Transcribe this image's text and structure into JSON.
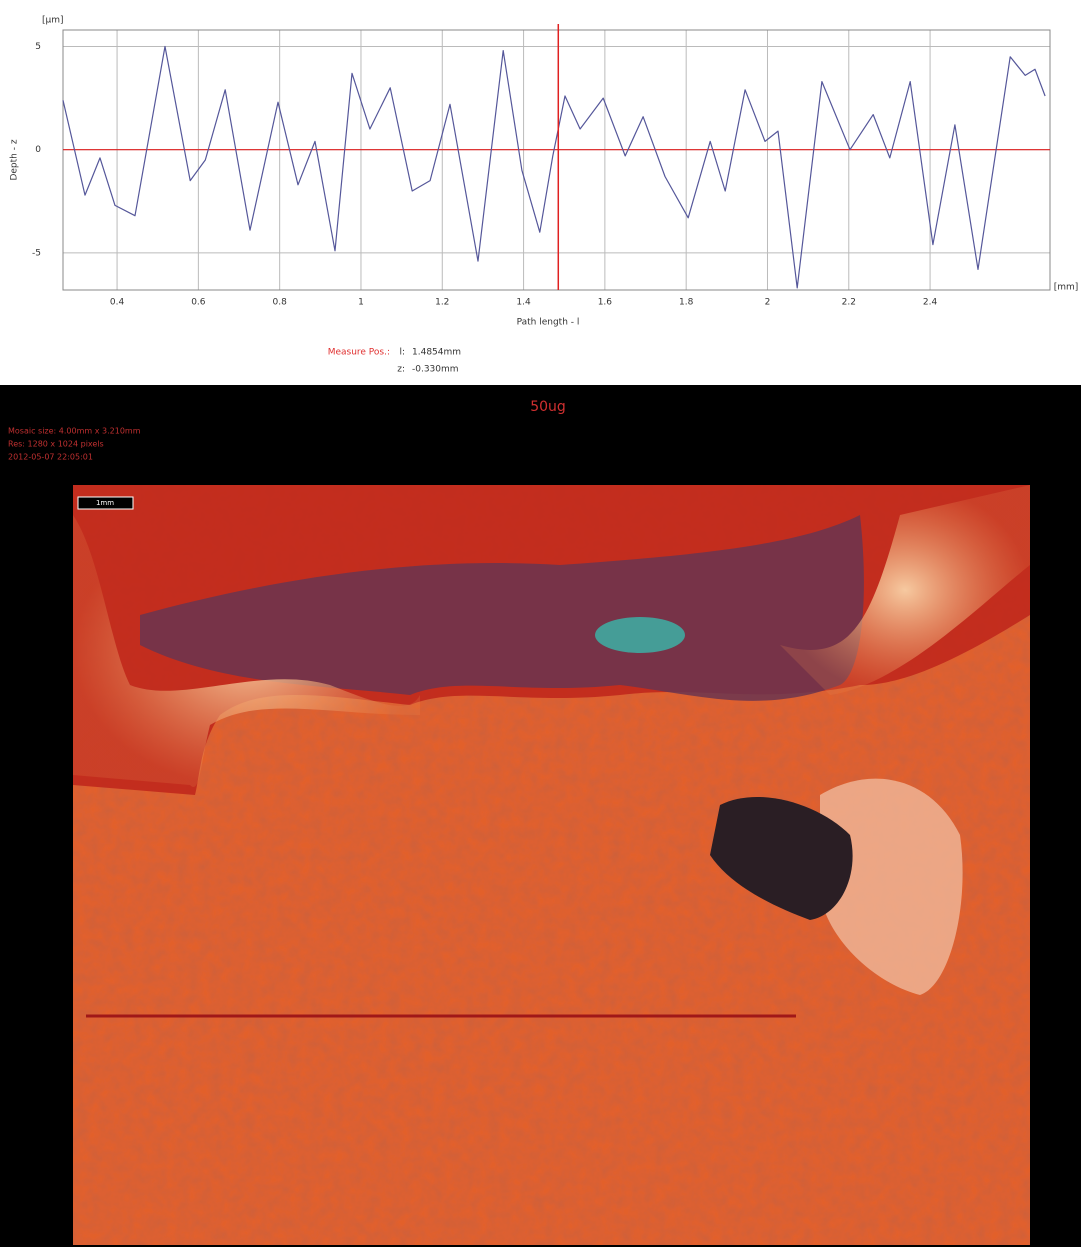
{
  "chart_data": {
    "type": "line",
    "y_unit": "[µm]",
    "x_unit": "[mm]",
    "y_label": "Depth - z",
    "x_label": "Path length - l",
    "xlim": [
      0.267,
      2.695
    ],
    "ylim": [
      -6.8,
      5.8
    ],
    "xticks": [
      0.4,
      0.6,
      0.8,
      1,
      1.2,
      1.4,
      1.6,
      1.8,
      2,
      2.2,
      2.4
    ],
    "yticks": [
      5,
      0,
      -5
    ],
    "grid": true,
    "series": [
      {
        "color": "#55579a",
        "x": [
          0.267,
          0.321,
          0.358,
          0.395,
          0.444,
          0.518,
          0.58,
          0.617,
          0.666,
          0.727,
          0.796,
          0.845,
          0.887,
          0.936,
          0.978,
          1.022,
          1.072,
          1.126,
          1.17,
          1.219,
          1.288,
          1.35,
          1.396,
          1.44,
          1.472,
          1.502,
          1.539,
          1.596,
          1.65,
          1.694,
          1.748,
          1.805,
          1.859,
          1.896,
          1.945,
          1.994,
          2.026,
          2.073,
          2.134,
          2.203,
          2.26,
          2.301,
          2.351,
          2.407,
          2.461,
          2.518,
          2.597,
          2.634,
          2.658,
          2.683
        ],
        "values": [
          2.4,
          -2.2,
          -0.4,
          -2.7,
          -3.2,
          5.0,
          -1.5,
          -0.5,
          2.9,
          -3.9,
          2.3,
          -1.7,
          0.4,
          -4.9,
          3.7,
          1.0,
          3.0,
          -2.0,
          -1.5,
          2.2,
          -5.4,
          4.8,
          -1.0,
          -4.0,
          -0.3,
          2.6,
          1.0,
          2.5,
          -0.3,
          1.6,
          -1.3,
          -3.3,
          0.4,
          -2.0,
          2.9,
          0.4,
          0.9,
          -6.7,
          3.3,
          0.0,
          1.7,
          -0.4,
          3.3,
          -4.6,
          1.2,
          -5.8,
          4.5,
          3.6,
          3.9,
          2.6
        ]
      }
    ],
    "cursor": {
      "title": "Measure Pos.:",
      "l_label": "l:",
      "l": {
        "value": 1.4854,
        "label": "1.4854mm"
      },
      "z_label": "z:",
      "z": "-0.330mm"
    }
  },
  "image_panel": {
    "title": "50ug",
    "info": [
      "Mosaic size: 4.00mm x 3.210mm",
      "Res: 1280 x 1024 pixels",
      "2012-05-07 22:05:01"
    ],
    "scale_bar": "1mm"
  }
}
